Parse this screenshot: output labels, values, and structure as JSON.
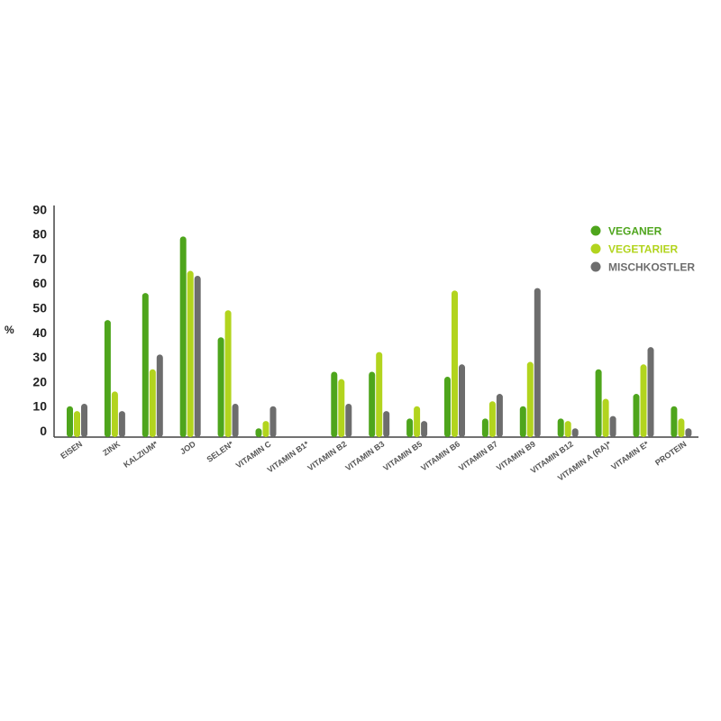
{
  "chart_data": {
    "type": "bar",
    "ylabel": "%",
    "ylim": [
      0,
      90
    ],
    "yticks": [
      "90",
      "80",
      "70",
      "60",
      "50",
      "40",
      "30",
      "20",
      "10",
      "0"
    ],
    "categories": [
      "EISEN",
      "ZINK",
      "KALZIUM*",
      "JOD",
      "SELEN*",
      "VITAMIN C",
      "VITAMIN B1*",
      "VITAMIN B2",
      "VITAMIN B3",
      "VITAMIN B5",
      "VITAMIN B6",
      "VITAMIN B7",
      "VITAMIN B9",
      "VITAMIN B12",
      "VITAMIN A (RA)*",
      "VITAMIN E*",
      "PROTEIN"
    ],
    "series": [
      {
        "name": "VEGANER",
        "color": "#4ea51c",
        "values": [
          10,
          45,
          56,
          79,
          38,
          1,
          null,
          24,
          24,
          5,
          22,
          5,
          10,
          5,
          25,
          15,
          10
        ]
      },
      {
        "name": "VEGETARIER",
        "color": "#b2d41e",
        "values": [
          8,
          16,
          25,
          65,
          49,
          4,
          null,
          21,
          32,
          10,
          57,
          12,
          28,
          4,
          13,
          27,
          5
        ]
      },
      {
        "name": "MISCHKOSTLER",
        "color": "#6d6d6d",
        "values": [
          11,
          8,
          31,
          63,
          11,
          10,
          null,
          11,
          8,
          4,
          27,
          15,
          58,
          1,
          6,
          34,
          1
        ]
      }
    ],
    "legend_position": "top-right",
    "grid": false
  }
}
